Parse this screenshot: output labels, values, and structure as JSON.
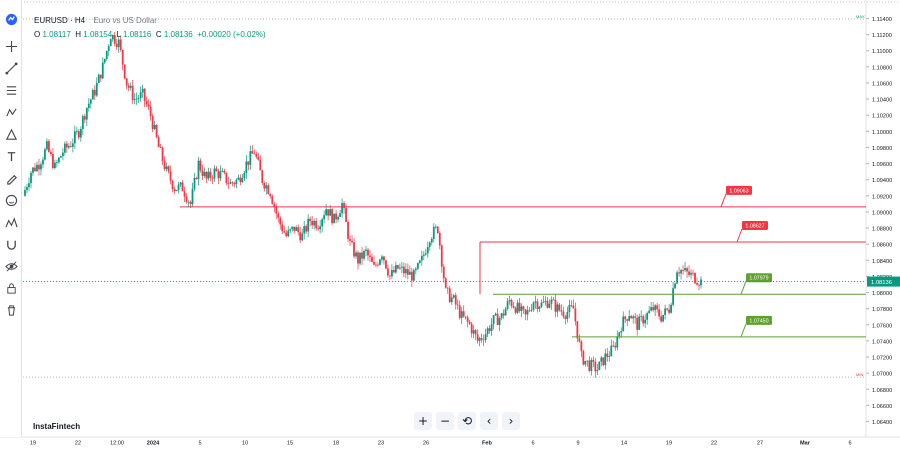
{
  "toolbar": {
    "icons": [
      "logo-icon",
      "crosshair-icon",
      "trend-line-icon",
      "fib-icon",
      "pattern-icon",
      "projection-icon",
      "brush-icon",
      "text-icon",
      "pencil-icon",
      "emoji-icon",
      "ruler-icon",
      "magnet-icon",
      "eye-icon",
      "lock-icon",
      "trash-icon"
    ]
  },
  "legend": {
    "symbol": "EURUSD · H4",
    "description": "Euro vs US Dollar",
    "open_key": "O",
    "open": "1.08117",
    "high_key": "H",
    "high": "1.08154",
    "low_key": "L",
    "low": "1.08116",
    "close_key": "C",
    "close": "1.08136",
    "change": "+0.00020 (+0.02%)"
  },
  "brand": "InstaFintech",
  "nav_buttons": [
    "+",
    "−",
    "⟲",
    "‹",
    "›"
  ],
  "chart_data": {
    "type": "candlestick",
    "ylim": [
      1.064,
      1.114
    ],
    "y_ticks": [
      "1.11400",
      "1.11200",
      "1.11000",
      "1.10800",
      "1.10600",
      "1.10400",
      "1.10200",
      "1.10000",
      "1.09800",
      "1.09600",
      "1.09400",
      "1.09200",
      "1.09000",
      "1.08800",
      "1.08600",
      "1.08400",
      "1.08200",
      "1.08000",
      "1.07800",
      "1.07600",
      "1.07400",
      "1.07200",
      "1.07000",
      "1.06800",
      "1.06600",
      "1.06400"
    ],
    "x_ticks": [
      "19",
      "22",
      "12:00",
      "2024",
      "5",
      "10",
      "15",
      "18",
      "23",
      "26",
      "Feb",
      "6",
      "9",
      "14",
      "19",
      "22",
      "27",
      "Mar",
      "6"
    ],
    "close_path": [
      1.092,
      1.095,
      1.096,
      1.098,
      1.0955,
      1.0975,
      1.0985,
      1.1,
      1.103,
      1.105,
      1.108,
      1.112,
      1.111,
      1.106,
      1.104,
      1.1045,
      1.102,
      1.098,
      1.095,
      1.093,
      1.093,
      1.091,
      1.096,
      1.094,
      1.095,
      1.0945,
      1.0935,
      1.094,
      1.096,
      1.0975,
      1.094,
      1.0925,
      1.089,
      1.087,
      1.088,
      1.087,
      1.089,
      1.0885,
      1.0905,
      1.089,
      1.091,
      1.086,
      1.084,
      1.085,
      1.083,
      1.085,
      1.082,
      1.083,
      1.0825,
      1.082,
      1.084,
      1.087,
      1.088,
      1.08,
      1.079,
      1.077,
      1.076,
      1.074,
      1.075,
      1.0765,
      1.077,
      1.079,
      1.078,
      1.077,
      1.079,
      1.0785,
      1.079,
      1.078,
      1.0775,
      1.078,
      1.072,
      1.071,
      1.0705,
      1.072,
      1.073,
      1.076,
      1.0775,
      1.076,
      1.077,
      1.078,
      1.077,
      1.078,
      1.083,
      1.0825,
      1.082,
      1.08136
    ],
    "levels": [
      {
        "value": 1.09063,
        "label": "1.09063",
        "color": "#f23645"
      },
      {
        "value": 1.08627,
        "label": "1.08627",
        "color": "#f23645"
      },
      {
        "value": 1.07979,
        "label": "1.07979",
        "color": "#5ea12f"
      },
      {
        "value": 1.0745,
        "label": "1.07450",
        "color": "#5ea12f"
      }
    ],
    "current_price": {
      "value": 1.08136,
      "label": "1.08136"
    },
    "max_label": "MAX",
    "min_label": "MIN",
    "colors": {
      "up": "#089981",
      "down": "#f23645",
      "resistance": "#f23645",
      "support": "#5ea12f",
      "price_tag": "#089981"
    }
  }
}
